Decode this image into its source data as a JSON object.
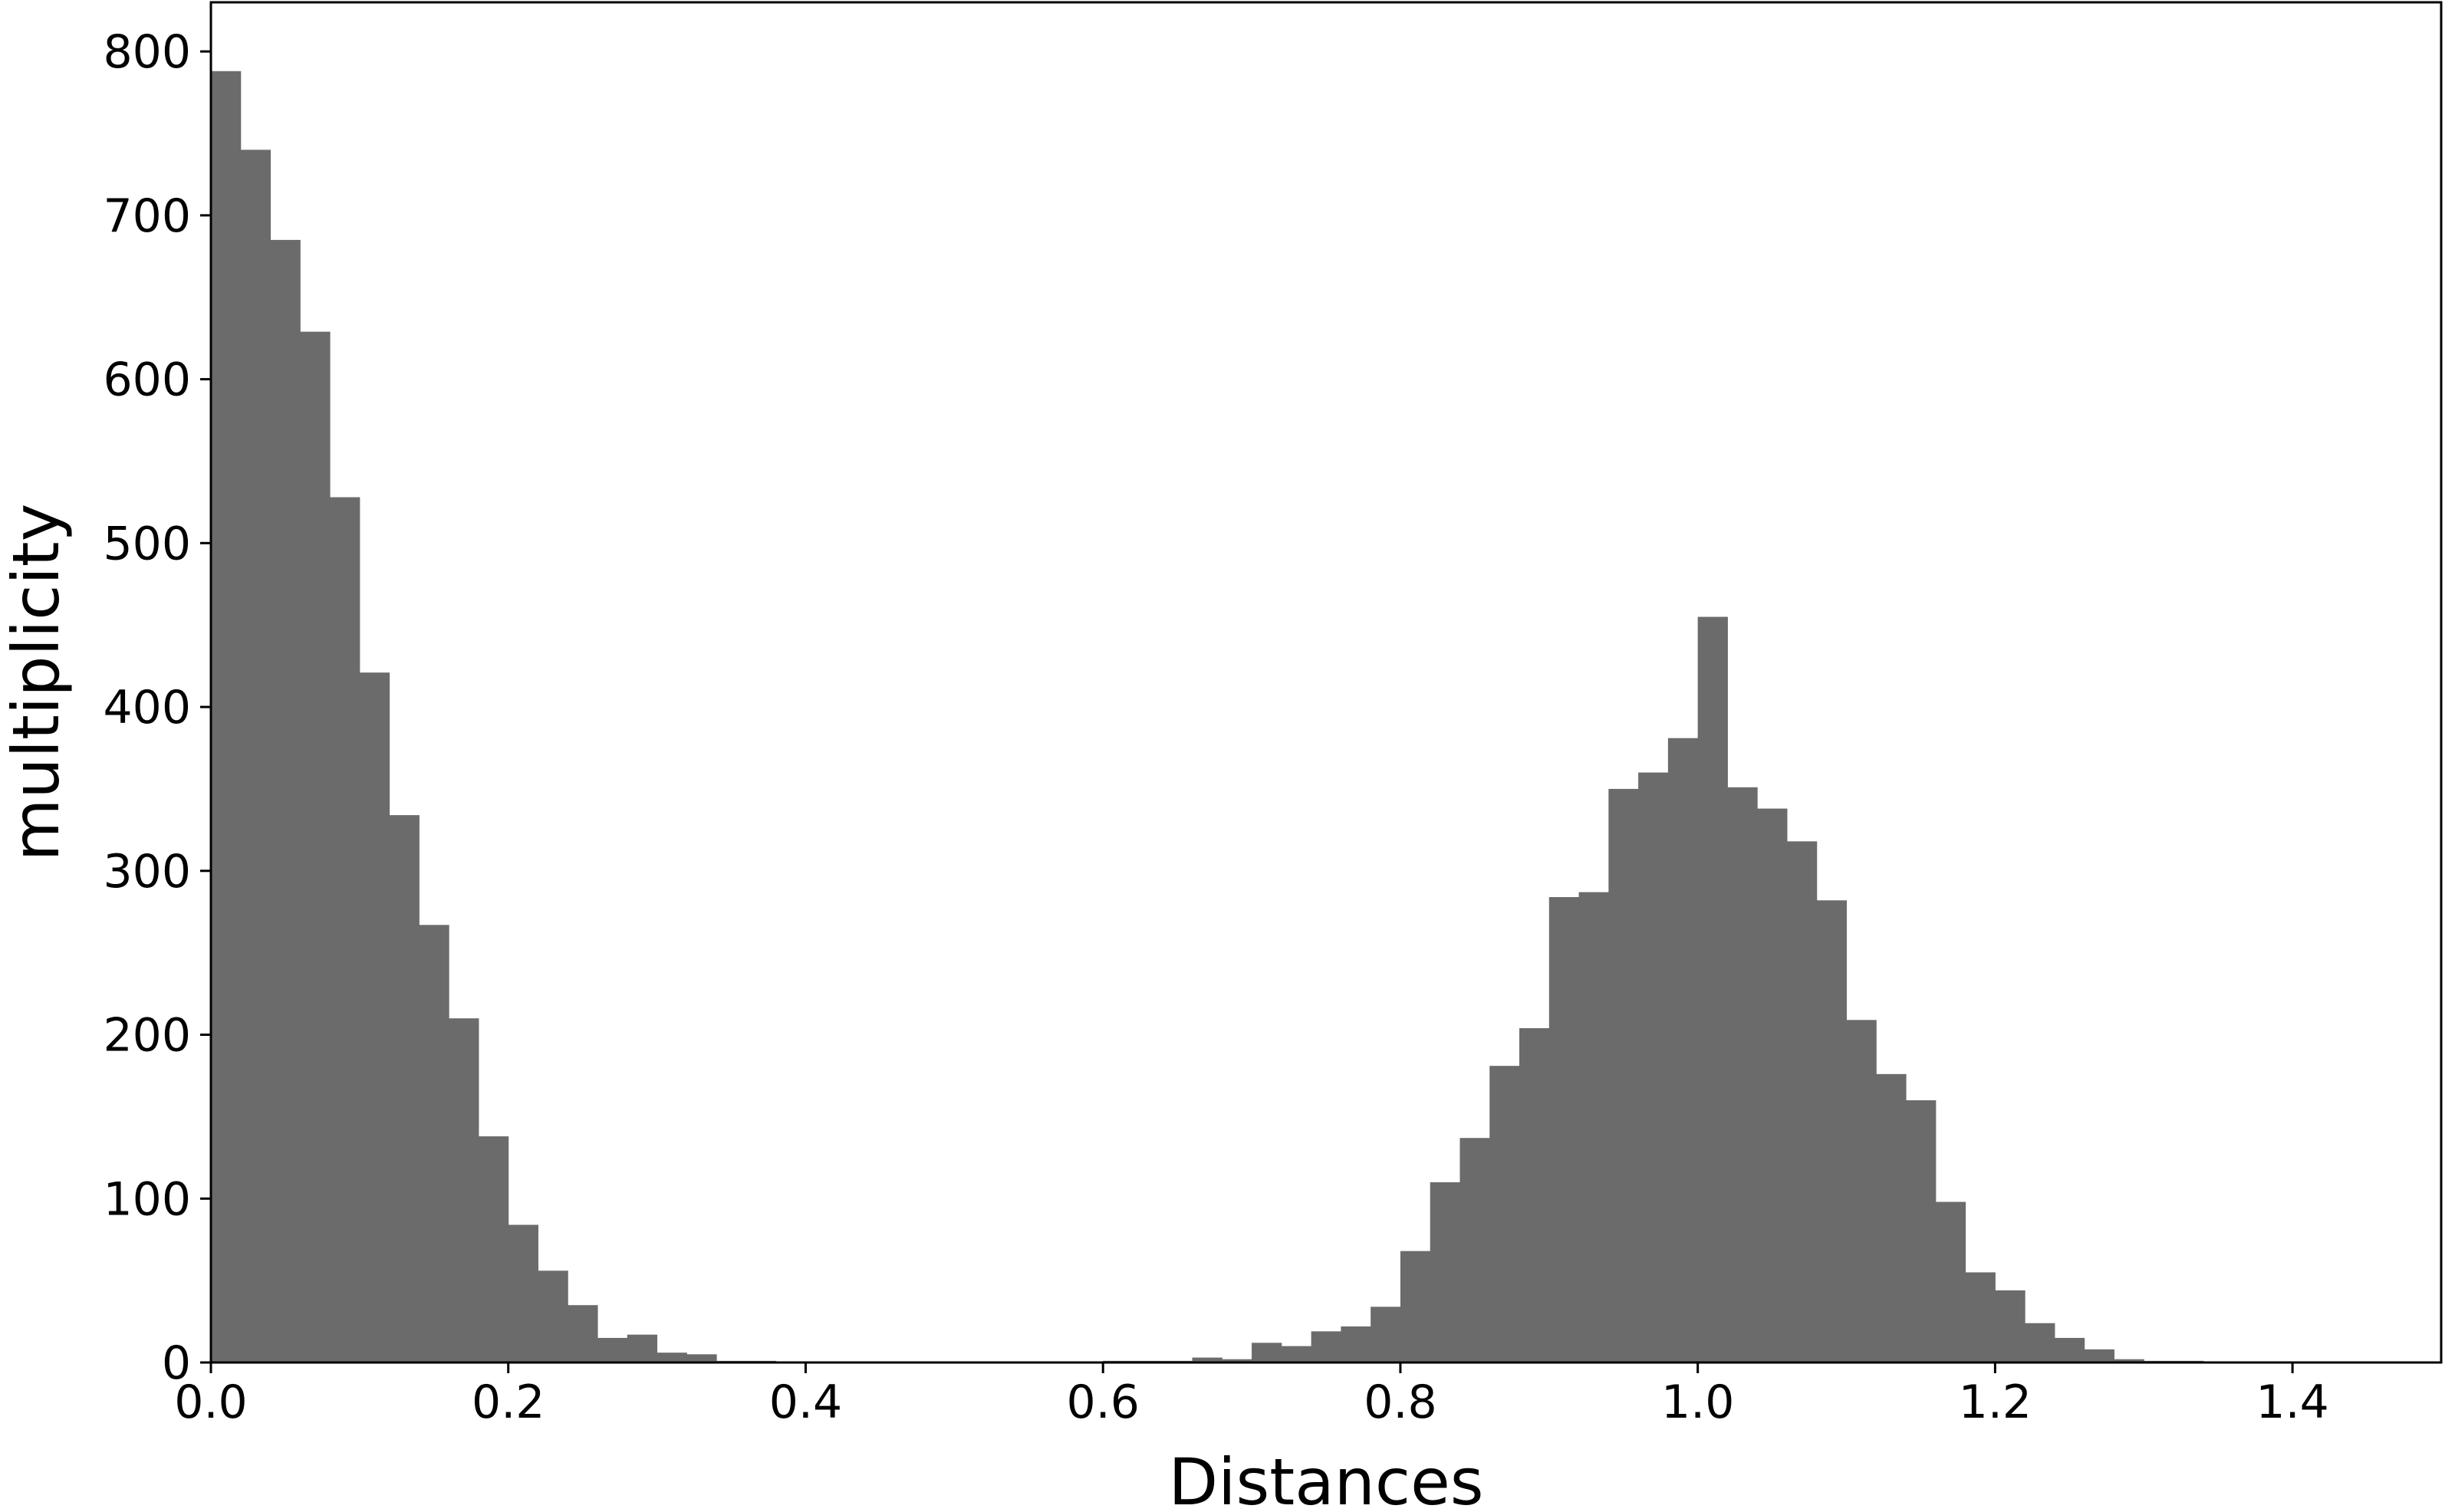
{
  "chart_data": {
    "type": "bar",
    "subtype": "histogram",
    "title": "",
    "xlabel": "Distances",
    "ylabel": "multiplicity",
    "xlim": [
      0.0,
      1.5
    ],
    "ylim": [
      0,
      830
    ],
    "grid": false,
    "bar_color": "#6b6b6b",
    "bin_width": 0.02,
    "bin_starts": [
      0.0,
      0.02,
      0.04,
      0.06,
      0.08,
      0.1,
      0.12,
      0.14,
      0.16,
      0.18,
      0.2,
      0.22,
      0.24,
      0.26,
      0.28,
      0.3,
      0.32,
      0.34,
      0.36,
      0.38,
      0.4,
      0.42,
      0.44,
      0.46,
      0.48,
      0.5,
      0.52,
      0.54,
      0.56,
      0.58,
      0.6,
      0.62,
      0.64,
      0.66,
      0.68,
      0.7,
      0.72,
      0.74,
      0.76,
      0.78,
      0.8,
      0.82,
      0.84,
      0.86,
      0.88,
      0.9,
      0.92,
      0.94,
      0.96,
      0.98,
      1.0,
      1.02,
      1.04,
      1.06,
      1.08,
      1.1,
      1.12,
      1.14,
      1.16,
      1.18,
      1.2,
      1.22,
      1.24,
      1.26,
      1.28,
      1.3,
      1.32,
      1.34,
      1.36,
      1.38,
      1.4,
      1.42,
      1.44,
      1.46,
      1.48
    ],
    "values": [
      788,
      740,
      685,
      629,
      528,
      421,
      334,
      267,
      210,
      138,
      84,
      56,
      35,
      15,
      17,
      6,
      5,
      1,
      1,
      0,
      0,
      0,
      0,
      0,
      0,
      0,
      0,
      0,
      0,
      0,
      1,
      1,
      1,
      3,
      2,
      12,
      10,
      19,
      22,
      34,
      68,
      110,
      137,
      181,
      204,
      284,
      287,
      350,
      360,
      381,
      455,
      351,
      338,
      318,
      282,
      209,
      176,
      160,
      98,
      55,
      44,
      24,
      15,
      8,
      2,
      1,
      1,
      0,
      0,
      0,
      0,
      0,
      0,
      0,
      0
    ],
    "x_ticks": [
      "0.0",
      "0.2",
      "0.4",
      "0.6",
      "0.8",
      "1.0",
      "1.2",
      "1.4"
    ],
    "x_tick_values": [
      0.0,
      0.2,
      0.4,
      0.6,
      0.8,
      1.0,
      1.2,
      1.4
    ],
    "y_ticks": [
      "0",
      "100",
      "200",
      "300",
      "400",
      "500",
      "600",
      "700",
      "800"
    ],
    "y_tick_values": [
      0,
      100,
      200,
      300,
      400,
      500,
      600,
      700,
      800
    ]
  }
}
